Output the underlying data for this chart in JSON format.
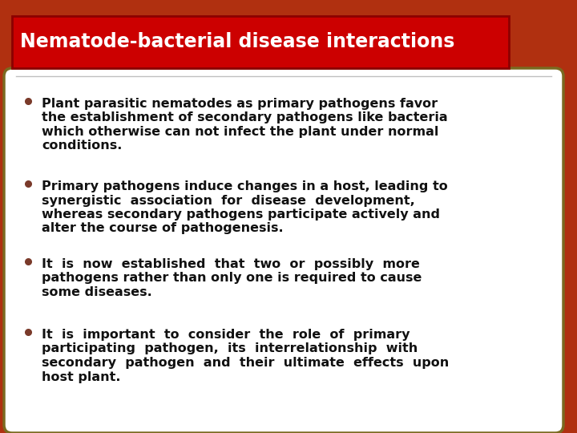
{
  "title": "Nematode-bacterial disease interactions",
  "title_bg": "#cc0000",
  "title_text_color": "#ffffff",
  "title_border_color": "#8b0000",
  "outer_bg_color": "#b03010",
  "inner_bg_color": "#ffffff",
  "inner_border_color": "#7a6a20",
  "separator_color": "#c0c0c0",
  "bullet_color": "#7a3a2a",
  "text_color": "#111111",
  "bullets": [
    "Plant parasitic nematodes as primary pathogens favor the establishment of secondary pathogens like bacteria which otherwise can not infect the plant under normal conditions.",
    "Primary pathogens induce changes in a host, leading to synergistic association for disease development, whereas secondary pathogens participate actively and alter the course of pathogenesis.",
    "It is now established that two or possibly more pathogens rather than only one is required to cause some diseases.",
    "It is important to consider the role of primary participating pathogen, its interrelationship with secondary pathogen and their ultimate effects upon host plant."
  ],
  "figsize": [
    7.2,
    5.4
  ],
  "dpi": 100
}
